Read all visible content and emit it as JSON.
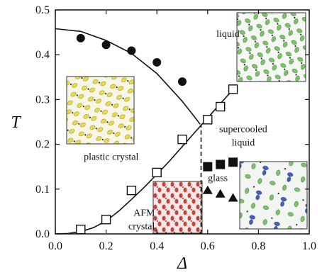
{
  "chart_data": {
    "type": "scatter",
    "xlabel": "Δ",
    "ylabel": "T",
    "xlim": [
      0.0,
      1.0
    ],
    "ylim": [
      0.0,
      0.5
    ],
    "xticks": [
      "0.0",
      "0.2",
      "0.4",
      "0.6",
      "0.8",
      "1.0"
    ],
    "yticks": [
      "0.0",
      "0.1",
      "0.2",
      "0.3",
      "0.4",
      "0.5"
    ],
    "grid": false,
    "series": [
      {
        "marker": "filled-circle",
        "x": [
          0.1,
          0.2,
          0.3,
          0.4,
          0.5
        ],
        "y": [
          0.437,
          0.422,
          0.409,
          0.383,
          0.34
        ]
      },
      {
        "marker": "open-square",
        "x": [
          0.1,
          0.2,
          0.3,
          0.4,
          0.5,
          0.6,
          0.65,
          0.7
        ],
        "y": [
          0.01,
          0.032,
          0.097,
          0.137,
          0.211,
          0.255,
          0.284,
          0.323
        ]
      },
      {
        "marker": "filled-square",
        "x": [
          0.6,
          0.65,
          0.7
        ],
        "y": [
          0.15,
          0.155,
          0.16
        ]
      },
      {
        "marker": "filled-triangle",
        "x": [
          0.6,
          0.65,
          0.7
        ],
        "y": [
          0.097,
          0.089,
          0.08
        ]
      }
    ],
    "curves": [
      {
        "style": "solid",
        "x": [
          0.0,
          0.1,
          0.2,
          0.3,
          0.4,
          0.5,
          0.55,
          0.57
        ],
        "y": [
          0.458,
          0.452,
          0.432,
          0.403,
          0.358,
          0.296,
          0.26,
          0.245
        ]
      },
      {
        "style": "solid",
        "x": [
          0.0,
          0.05,
          0.1,
          0.15,
          0.2,
          0.25,
          0.3,
          0.35,
          0.4,
          0.45,
          0.5,
          0.55,
          0.6,
          0.65,
          0.7
        ],
        "y": [
          0.0,
          0.001,
          0.005,
          0.014,
          0.029,
          0.051,
          0.077,
          0.104,
          0.133,
          0.163,
          0.195,
          0.227,
          0.259,
          0.291,
          0.322
        ]
      },
      {
        "style": "dashed",
        "x": [
          0.574,
          0.574
        ],
        "y": [
          0.0,
          0.245
        ]
      }
    ],
    "annotations": [
      {
        "key": "liquid",
        "text": "liquid",
        "x": 0.68,
        "y": 0.44
      },
      {
        "key": "supercooled1",
        "text": "supercooled",
        "x": 0.74,
        "y": 0.227
      },
      {
        "key": "supercooled2",
        "text": "liquid",
        "x": 0.74,
        "y": 0.197
      },
      {
        "key": "plastic",
        "text": "plastic crystal",
        "x": 0.22,
        "y": 0.165
      },
      {
        "key": "glass",
        "text": "glass",
        "x": 0.64,
        "y": 0.118
      },
      {
        "key": "afm1",
        "text": "AFM",
        "x": 0.35,
        "y": 0.04
      },
      {
        "key": "afm2",
        "text": "crystal",
        "x": 0.34,
        "y": 0.01
      }
    ],
    "insets": [
      {
        "name": "liquid-snapshot",
        "base_color": "#7bc46a",
        "accent_color": "#7bc46a"
      },
      {
        "name": "plastic-crystal-snapshot",
        "base_color": "#e8dc4a",
        "accent_color": "#e8dc4a"
      },
      {
        "name": "afm-crystal-snapshot",
        "base_color": "#c8403a",
        "accent_color": "#c8403a"
      },
      {
        "name": "glass-snapshot",
        "base_color": "#7bc46a",
        "accent_color": "#3f5fc0"
      }
    ]
  }
}
